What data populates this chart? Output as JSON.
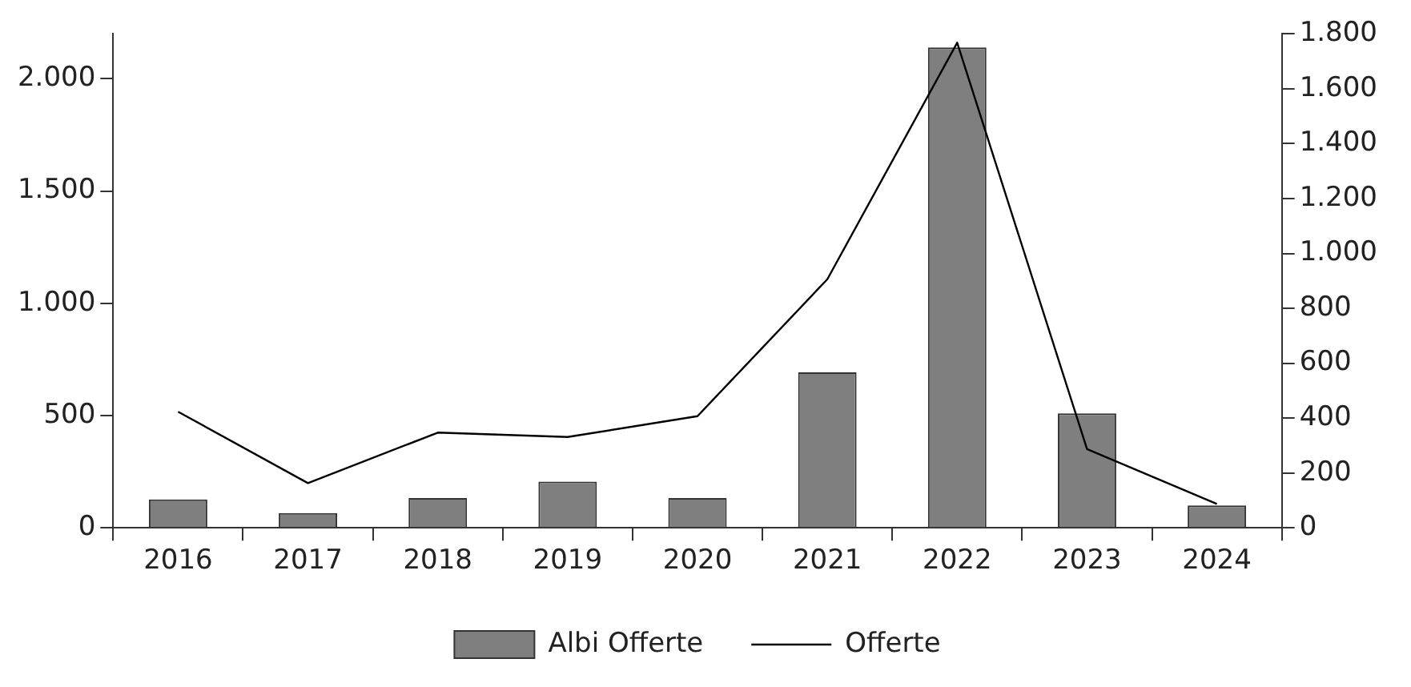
{
  "chart_data": {
    "type": "bar",
    "categories": [
      "2016",
      "2017",
      "2018",
      "2019",
      "2020",
      "2021",
      "2022",
      "2023",
      "2024"
    ],
    "series": [
      {
        "name": "Albi Offerte",
        "color": "#7f7f7f",
        "values": [
          126,
          66,
          133,
          206,
          133,
          693,
          2140,
          510,
          100
        ]
      },
      {
        "name": "Offerte",
        "type": "line",
        "axis": "y2",
        "color": "#000000",
        "values": [
          423,
          163,
          347,
          331,
          407,
          906,
          1768,
          287,
          87
        ]
      }
    ],
    "ylim": [
      0,
      2200
    ],
    "yticks": [
      0,
      {
        "value": 500,
        "label": "500"
      },
      {
        "value": 1000,
        "label": "1.000"
      },
      {
        "value": 1500,
        "label": "1.500"
      },
      {
        "value": 2000,
        "label": "2.000"
      }
    ],
    "y2lim": [
      0,
      1800
    ],
    "y2ticks": [
      0,
      200,
      400,
      600,
      800,
      {
        "value": 1000,
        "label": "1.000"
      },
      {
        "value": 1200,
        "label": "1.200"
      },
      {
        "value": 1400,
        "label": "1.400"
      },
      {
        "value": 1600,
        "label": "1.600"
      },
      {
        "value": 1800,
        "label": "1.800"
      }
    ],
    "marker": "none",
    "line_style": "solid",
    "grid": false,
    "legend": "bottom"
  }
}
